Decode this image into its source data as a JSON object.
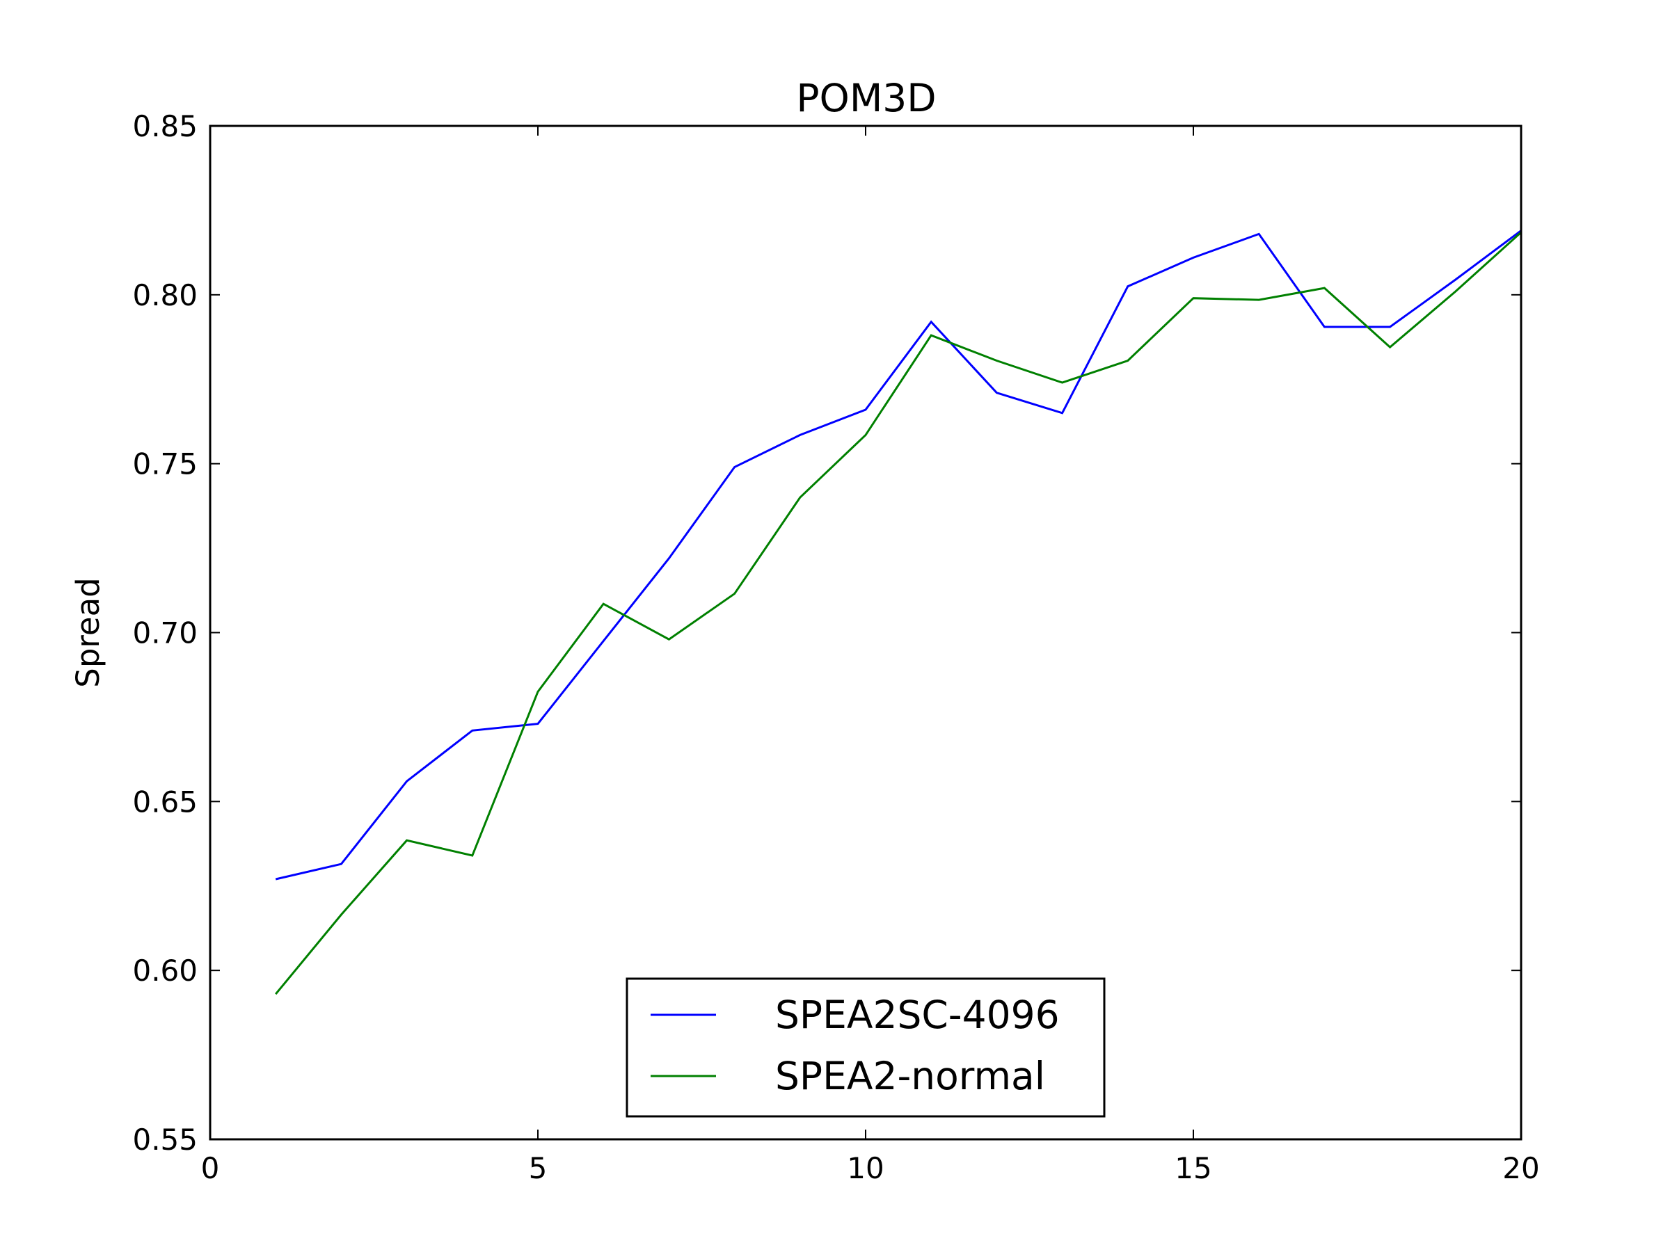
{
  "chart_data": {
    "type": "line",
    "title": "POM3D",
    "xlabel": "",
    "ylabel": "Spread",
    "xlim": [
      0,
      20
    ],
    "ylim": [
      0.55,
      0.85
    ],
    "x_ticks": [
      "0",
      "5",
      "10",
      "15",
      "20"
    ],
    "y_ticks": [
      "0.55",
      "0.60",
      "0.65",
      "0.70",
      "0.75",
      "0.80",
      "0.85"
    ],
    "grid": false,
    "legend_position": "lower center",
    "x": [
      1,
      2,
      3,
      4,
      5,
      6,
      7,
      8,
      9,
      10,
      11,
      12,
      13,
      14,
      15,
      16,
      17,
      18,
      19,
      20
    ],
    "series": [
      {
        "name": "SPEA2SC-4096",
        "color": "#0000ff",
        "values": [
          0.627,
          0.6315,
          0.656,
          0.671,
          0.673,
          0.6975,
          0.722,
          0.749,
          0.7585,
          0.766,
          0.792,
          0.771,
          0.765,
          0.8025,
          0.811,
          0.818,
          0.7905,
          0.7905,
          0.8045,
          0.819
        ]
      },
      {
        "name": "SPEA2-normal",
        "color": "#008000",
        "values": [
          0.593,
          0.6165,
          0.6385,
          0.634,
          0.6825,
          0.7085,
          0.698,
          0.7115,
          0.74,
          0.7585,
          0.788,
          0.7805,
          0.774,
          0.7805,
          0.799,
          0.7985,
          0.802,
          0.7845,
          0.801,
          0.8185
        ]
      }
    ]
  }
}
